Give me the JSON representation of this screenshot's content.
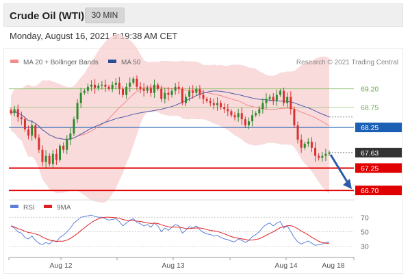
{
  "header": {
    "title": "Crude Oil (WTI)",
    "timeframe": "30 MIN"
  },
  "timestamp": "Monday, August 16, 2021 5:19:38 AM CET",
  "legend": {
    "ma20_bb": "MA 20 + Bollinger Bands",
    "ma50": "MA 50",
    "credit": "Research © 2021 Trading Central",
    "rsi": "RSI",
    "rsi_ma": "9MA"
  },
  "colors": {
    "bb_band": "#f7cfd0",
    "ma20": "#f08a8a",
    "ma50": "#4a5aa8",
    "candle_up": "#2e8b2e",
    "candle_down": "#d93030",
    "resistance": "#8dc26a",
    "pivot": "#1a5fb4",
    "support": "#e00000",
    "price_tag": "#333333",
    "rsi": "#5b7fd9",
    "rsi_ma": "#e02020",
    "arrow": "#2a5aa8"
  },
  "chart_data": [
    {
      "type": "candlestick",
      "title": "Crude Oil (WTI)",
      "timeframe": "30 MIN",
      "x_labels": [
        "Aug 12",
        "Aug 13",
        "Aug 14",
        "Aug 18"
      ],
      "ylim": [
        66.55,
        69.7
      ],
      "levels": [
        {
          "label": "69.20",
          "value": 69.2,
          "kind": "resistance"
        },
        {
          "label": "68.75",
          "value": 68.75,
          "kind": "resistance"
        },
        {
          "label": "68.25",
          "value": 68.25,
          "kind": "pivot"
        },
        {
          "label": "67.63",
          "value": 67.63,
          "kind": "last_price"
        },
        {
          "label": "67.25",
          "value": 67.25,
          "kind": "support"
        },
        {
          "label": "66.70",
          "value": 66.7,
          "kind": "support"
        }
      ],
      "close": [
        68.6,
        68.7,
        68.5,
        68.45,
        68.2,
        68.05,
        68.3,
        68.0,
        67.7,
        67.4,
        67.55,
        67.35,
        67.6,
        67.45,
        67.8,
        67.7,
        67.95,
        68.1,
        68.45,
        68.85,
        69.1,
        69.15,
        69.25,
        69.3,
        69.22,
        69.28,
        69.3,
        69.25,
        69.2,
        69.3,
        69.35,
        69.2,
        69.05,
        69.25,
        69.35,
        69.45,
        69.25,
        69.2,
        69.15,
        69.22,
        69.1,
        69.3,
        69.2,
        68.95,
        69.1,
        69.05,
        69.15,
        69.25,
        69.2,
        68.85,
        69.0,
        69.15,
        69.1,
        69.2,
        69.05,
        68.95,
        68.9,
        68.85,
        68.8,
        68.85,
        68.75,
        68.7,
        68.65,
        68.55,
        68.5,
        68.6,
        68.45,
        68.3,
        68.4,
        68.55,
        68.6,
        68.7,
        68.85,
        68.95,
        69.0,
        68.9,
        69.05,
        69.15,
        68.85,
        69.0,
        68.7,
        68.3,
        67.95,
        67.75,
        67.85,
        67.9,
        67.75,
        67.55,
        67.5,
        67.55,
        67.6,
        67.63
      ],
      "rsi": [
        58,
        55,
        50,
        48,
        42,
        40,
        44,
        38,
        34,
        32,
        35,
        33,
        38,
        36,
        42,
        45,
        50,
        55,
        62,
        66,
        70,
        71,
        72,
        73,
        71,
        70,
        70,
        68,
        66,
        67,
        68,
        64,
        58,
        62,
        66,
        68,
        63,
        61,
        58,
        60,
        56,
        62,
        58,
        50,
        55,
        52,
        56,
        60,
        58,
        48,
        52,
        57,
        55,
        58,
        53,
        49,
        47,
        46,
        44,
        45,
        42,
        40,
        39,
        37,
        36,
        40,
        38,
        35,
        38,
        43,
        46,
        50,
        56,
        60,
        62,
        58,
        62,
        64,
        55,
        58,
        50,
        42,
        36,
        33,
        35,
        37,
        34,
        31,
        32,
        33,
        35,
        36
      ],
      "rsi_levels": [
        {
          "label": "70",
          "value": 70
        },
        {
          "label": "50",
          "value": 50
        },
        {
          "label": "30",
          "value": 30
        }
      ]
    }
  ]
}
